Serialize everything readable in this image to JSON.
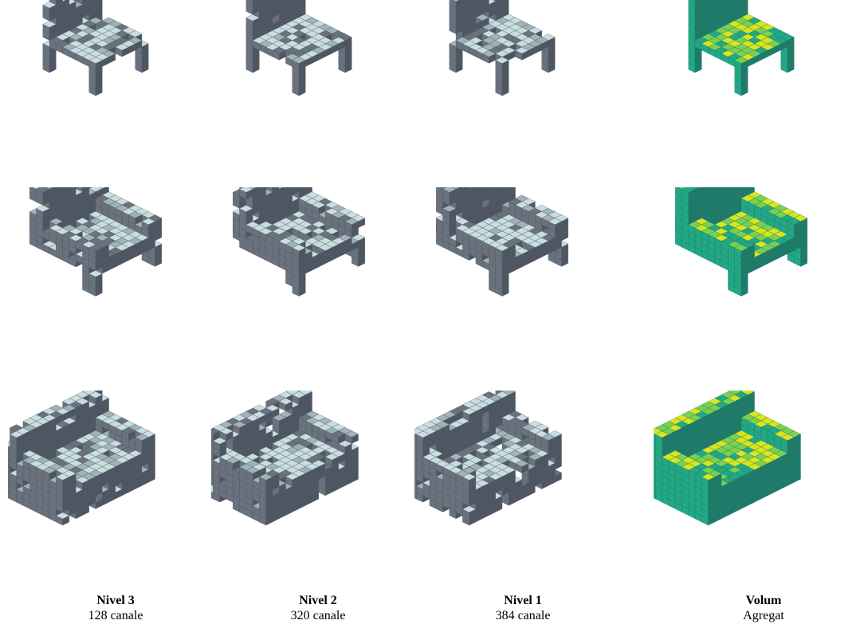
{
  "columns": [
    {
      "title": "Nivel 3",
      "subtitle": "128 canale",
      "style": "gray"
    },
    {
      "title": "Nivel 2",
      "subtitle": "320 canale",
      "style": "gray"
    },
    {
      "title": "Nivel 1",
      "subtitle": "384 canale",
      "style": "gray"
    },
    {
      "title": "Volum",
      "subtitle": "Agregat",
      "style": "viridis"
    }
  ],
  "rows": [
    {
      "object": "chair"
    },
    {
      "object": "armchair"
    },
    {
      "object": "sofa"
    }
  ],
  "palettes": {
    "gray": {
      "light": "#c9dede",
      "mid": "#9fb3b8",
      "dark": "#6a727e",
      "edge": "#4f5663"
    },
    "viridis": {
      "light": "#d9e51f",
      "mid": "#7ad151",
      "dark": "#22a884",
      "edge": "#1f7a6a"
    }
  }
}
